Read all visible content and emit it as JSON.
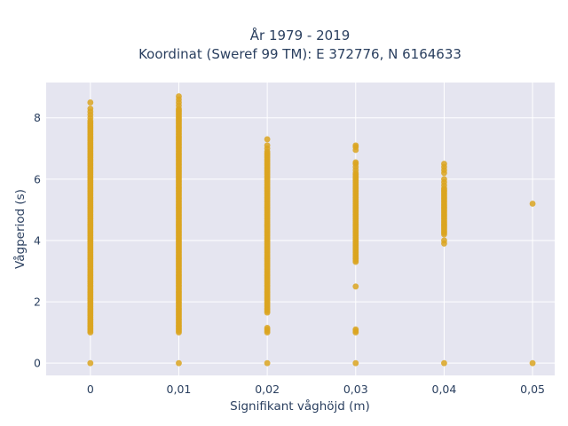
{
  "chart_data": {
    "type": "scatter",
    "title_line1": "År 1979 - 2019",
    "title_line2": "Koordinat (Sweref 99 TM): E 372776, N 6164633",
    "xlabel": "Signifikant våghöjd (m)",
    "ylabel": "Vågperiod (s)",
    "xlim": [
      -0.005,
      0.0525
    ],
    "ylim": [
      -0.4,
      9.15
    ],
    "x_ticks": [
      0,
      0.01,
      0.02,
      0.03,
      0.04,
      0.05
    ],
    "x_tick_labels": [
      "0",
      "0,01",
      "0,02",
      "0,03",
      "0,04",
      "0,05"
    ],
    "y_ticks": [
      0,
      2,
      4,
      6,
      8
    ],
    "y_tick_labels": [
      "0",
      "2",
      "4",
      "6",
      "8"
    ],
    "marker_color": "#DAA520",
    "plot_bg": "#E5E5F0",
    "grid": true,
    "series": [
      {
        "columns": [
          {
            "x": 0,
            "y_min": 1.0,
            "y_max": 7.9,
            "extra_y": [
              0.0,
              8.0,
              8.1,
              8.2,
              8.3,
              8.5
            ]
          },
          {
            "x": 0.01,
            "y_min": 1.0,
            "y_max": 8.3,
            "extra_y": [
              0.0,
              8.4,
              8.5,
              8.6,
              8.7
            ]
          },
          {
            "x": 0.02,
            "y_min": 1.65,
            "y_max": 6.9,
            "extra_y": [
              0.0,
              1.0,
              1.05,
              1.1,
              1.15,
              7.0,
              7.1,
              7.3
            ]
          },
          {
            "x": 0.03,
            "y_min": 3.3,
            "y_max": 6.2,
            "extra_y": [
              0.0,
              1.0,
              1.05,
              1.1,
              2.5,
              6.3,
              6.4,
              6.5,
              6.55,
              6.95,
              7.05,
              7.1
            ]
          },
          {
            "x": 0.04,
            "y_min": 4.2,
            "y_max": 5.7,
            "extra_y": [
              0.0,
              3.9,
              4.0,
              5.8,
              5.9,
              6.0,
              6.2,
              6.3,
              6.4,
              6.5
            ]
          },
          {
            "x": 0.05,
            "y_min": null,
            "y_max": null,
            "extra_y": [
              0.0,
              5.2
            ]
          }
        ]
      }
    ]
  }
}
